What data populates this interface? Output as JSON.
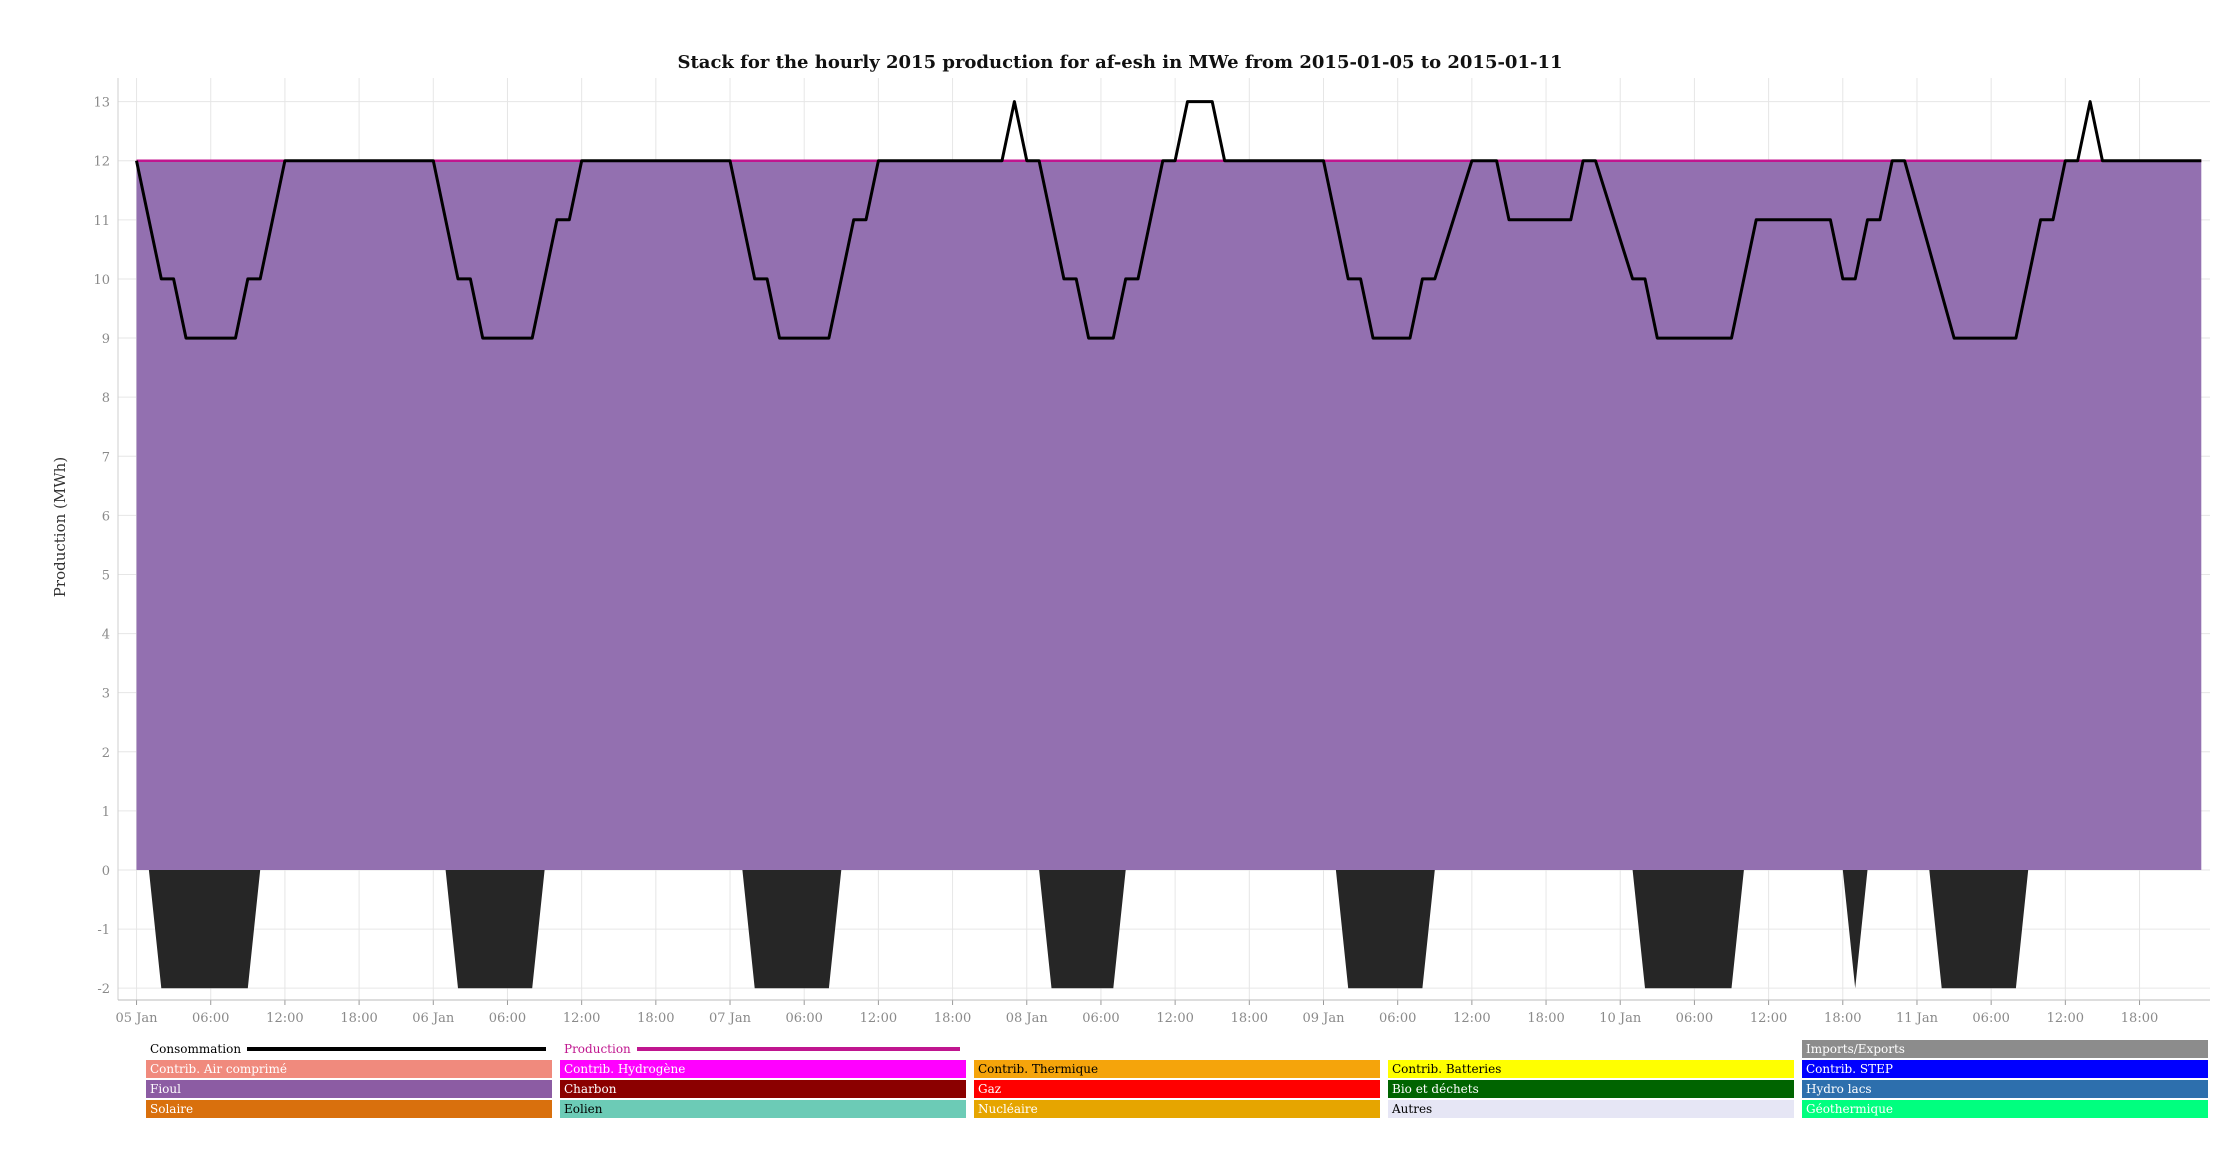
{
  "chart_data": {
    "type": "area",
    "title": "Stack for the hourly 2015 production for af-esh in MWe from 2015-01-05 to 2015-01-11",
    "xlabel": "",
    "ylabel": "Production (MWh)",
    "ylim": [
      -2.2,
      13.4
    ],
    "yticks": [
      -2,
      -1,
      0,
      1,
      2,
      3,
      4,
      5,
      6,
      7,
      8,
      9,
      10,
      11,
      12,
      13
    ],
    "xlim": [
      "2015-01-05 00:00",
      "2015-01-11 23:00"
    ],
    "xticks": [
      {
        "t": "2015-01-05 00:00",
        "label": "05 Jan"
      },
      {
        "t": "2015-01-05 06:00",
        "label": "06:00"
      },
      {
        "t": "2015-01-05 12:00",
        "label": "12:00"
      },
      {
        "t": "2015-01-05 18:00",
        "label": "18:00"
      },
      {
        "t": "2015-01-06 00:00",
        "label": "06 Jan"
      },
      {
        "t": "2015-01-06 06:00",
        "label": "06:00"
      },
      {
        "t": "2015-01-06 12:00",
        "label": "12:00"
      },
      {
        "t": "2015-01-06 18:00",
        "label": "18:00"
      },
      {
        "t": "2015-01-07 00:00",
        "label": "07 Jan"
      },
      {
        "t": "2015-01-07 06:00",
        "label": "06:00"
      },
      {
        "t": "2015-01-07 12:00",
        "label": "12:00"
      },
      {
        "t": "2015-01-07 18:00",
        "label": "18:00"
      },
      {
        "t": "2015-01-08 00:00",
        "label": "08 Jan"
      },
      {
        "t": "2015-01-08 06:00",
        "label": "06:00"
      },
      {
        "t": "2015-01-08 12:00",
        "label": "12:00"
      },
      {
        "t": "2015-01-08 18:00",
        "label": "18:00"
      },
      {
        "t": "2015-01-09 00:00",
        "label": "09 Jan"
      },
      {
        "t": "2015-01-09 06:00",
        "label": "06:00"
      },
      {
        "t": "2015-01-09 12:00",
        "label": "12:00"
      },
      {
        "t": "2015-01-09 18:00",
        "label": "18:00"
      },
      {
        "t": "2015-01-10 00:00",
        "label": "10 Jan"
      },
      {
        "t": "2015-01-10 06:00",
        "label": "06:00"
      },
      {
        "t": "2015-01-10 12:00",
        "label": "12:00"
      },
      {
        "t": "2015-01-10 18:00",
        "label": "18:00"
      },
      {
        "t": "2015-01-11 00:00",
        "label": "11 Jan"
      },
      {
        "t": "2015-01-11 06:00",
        "label": "06:00"
      },
      {
        "t": "2015-01-11 12:00",
        "label": "12:00"
      },
      {
        "t": "2015-01-11 18:00",
        "label": "18:00"
      }
    ],
    "grid": true,
    "series": [
      {
        "name": "Fioul",
        "kind": "area",
        "color": "#9370b0",
        "points": [
          [
            "2015-01-05 00:00",
            12
          ],
          [
            "2015-01-11 23:00",
            12
          ]
        ]
      },
      {
        "name": "Production",
        "kind": "line",
        "color": "#c0168f",
        "points": [
          [
            "2015-01-05 00:00",
            12
          ],
          [
            "2015-01-11 23:00",
            12
          ]
        ]
      },
      {
        "name": "Imports/Exports",
        "kind": "area",
        "color": "#262626",
        "points": [
          [
            "2015-01-05 00:00",
            0
          ],
          [
            "2015-01-05 01:00",
            0
          ],
          [
            "2015-01-05 02:00",
            -2
          ],
          [
            "2015-01-05 09:00",
            -2
          ],
          [
            "2015-01-05 10:00",
            0
          ],
          [
            "2015-01-06 00:00",
            0
          ],
          [
            "2015-01-06 01:00",
            0
          ],
          [
            "2015-01-06 02:00",
            -2
          ],
          [
            "2015-01-06 08:00",
            -2
          ],
          [
            "2015-01-06 09:00",
            0
          ],
          [
            "2015-01-07 00:00",
            0
          ],
          [
            "2015-01-07 01:00",
            0
          ],
          [
            "2015-01-07 02:00",
            -2
          ],
          [
            "2015-01-07 08:00",
            -2
          ],
          [
            "2015-01-07 09:00",
            0
          ],
          [
            "2015-01-08 01:00",
            0
          ],
          [
            "2015-01-08 02:00",
            -2
          ],
          [
            "2015-01-08 07:00",
            -2
          ],
          [
            "2015-01-08 08:00",
            0
          ],
          [
            "2015-01-09 01:00",
            0
          ],
          [
            "2015-01-09 02:00",
            -2
          ],
          [
            "2015-01-09 08:00",
            -2
          ],
          [
            "2015-01-09 09:00",
            0
          ],
          [
            "2015-01-10 00:00",
            0
          ],
          [
            "2015-01-10 01:00",
            0
          ],
          [
            "2015-01-10 02:00",
            -2
          ],
          [
            "2015-01-10 09:00",
            -2
          ],
          [
            "2015-01-10 10:00",
            0
          ],
          [
            "2015-01-10 18:00",
            0
          ],
          [
            "2015-01-10 19:00",
            -2
          ],
          [
            "2015-01-10 20:00",
            0
          ],
          [
            "2015-01-11 01:00",
            0
          ],
          [
            "2015-01-11 02:00",
            -2
          ],
          [
            "2015-01-11 08:00",
            -2
          ],
          [
            "2015-01-11 09:00",
            0
          ],
          [
            "2015-01-11 23:00",
            0
          ]
        ]
      },
      {
        "name": "Consommation",
        "kind": "line",
        "color": "#000000",
        "points": [
          [
            "2015-01-05 00:00",
            12
          ],
          [
            "2015-01-05 02:00",
            10
          ],
          [
            "2015-01-05 03:00",
            10
          ],
          [
            "2015-01-05 04:00",
            9
          ],
          [
            "2015-01-05 08:00",
            9
          ],
          [
            "2015-01-05 09:00",
            10
          ],
          [
            "2015-01-05 10:00",
            10
          ],
          [
            "2015-01-05 12:00",
            12
          ],
          [
            "2015-01-06 00:00",
            12
          ],
          [
            "2015-01-06 02:00",
            10
          ],
          [
            "2015-01-06 03:00",
            10
          ],
          [
            "2015-01-06 04:00",
            9
          ],
          [
            "2015-01-06 08:00",
            9
          ],
          [
            "2015-01-06 10:00",
            11
          ],
          [
            "2015-01-06 11:00",
            11
          ],
          [
            "2015-01-06 12:00",
            12
          ],
          [
            "2015-01-07 00:00",
            12
          ],
          [
            "2015-01-07 02:00",
            10
          ],
          [
            "2015-01-07 03:00",
            10
          ],
          [
            "2015-01-07 04:00",
            9
          ],
          [
            "2015-01-07 08:00",
            9
          ],
          [
            "2015-01-07 10:00",
            11
          ],
          [
            "2015-01-07 11:00",
            11
          ],
          [
            "2015-01-07 12:00",
            12
          ],
          [
            "2015-01-07 22:00",
            12
          ],
          [
            "2015-01-07 23:00",
            13
          ],
          [
            "2015-01-08 00:00",
            12
          ],
          [
            "2015-01-08 01:00",
            12
          ],
          [
            "2015-01-08 03:00",
            10
          ],
          [
            "2015-01-08 04:00",
            10
          ],
          [
            "2015-01-08 05:00",
            9
          ],
          [
            "2015-01-08 07:00",
            9
          ],
          [
            "2015-01-08 08:00",
            10
          ],
          [
            "2015-01-08 09:00",
            10
          ],
          [
            "2015-01-08 11:00",
            12
          ],
          [
            "2015-01-08 12:00",
            12
          ],
          [
            "2015-01-08 13:00",
            13
          ],
          [
            "2015-01-08 15:00",
            13
          ],
          [
            "2015-01-08 16:00",
            12
          ],
          [
            "2015-01-09 00:00",
            12
          ],
          [
            "2015-01-09 01:00",
            11
          ],
          [
            "2015-01-09 02:00",
            10
          ],
          [
            "2015-01-09 03:00",
            10
          ],
          [
            "2015-01-09 04:00",
            9
          ],
          [
            "2015-01-09 07:00",
            9
          ],
          [
            "2015-01-09 08:00",
            10
          ],
          [
            "2015-01-09 09:00",
            10
          ],
          [
            "2015-01-09 12:00",
            12
          ],
          [
            "2015-01-09 14:00",
            12
          ],
          [
            "2015-01-09 15:00",
            11
          ],
          [
            "2015-01-09 20:00",
            11
          ],
          [
            "2015-01-09 21:00",
            12
          ],
          [
            "2015-01-09 22:00",
            12
          ],
          [
            "2015-01-10 01:00",
            10
          ],
          [
            "2015-01-10 02:00",
            10
          ],
          [
            "2015-01-10 03:00",
            9
          ],
          [
            "2015-01-10 09:00",
            9
          ],
          [
            "2015-01-10 11:00",
            11
          ],
          [
            "2015-01-10 17:00",
            11
          ],
          [
            "2015-01-10 18:00",
            10
          ],
          [
            "2015-01-10 19:00",
            10
          ],
          [
            "2015-01-10 20:00",
            11
          ],
          [
            "2015-01-10 21:00",
            11
          ],
          [
            "2015-01-10 22:00",
            12
          ],
          [
            "2015-01-10 23:00",
            12
          ],
          [
            "2015-01-11 03:00",
            9
          ],
          [
            "2015-01-11 08:00",
            9
          ],
          [
            "2015-01-11 10:00",
            11
          ],
          [
            "2015-01-11 11:00",
            11
          ],
          [
            "2015-01-11 12:00",
            12
          ],
          [
            "2015-01-11 13:00",
            12
          ],
          [
            "2015-01-11 14:00",
            13
          ],
          [
            "2015-01-11 15:00",
            12
          ],
          [
            "2015-01-11 23:00",
            12
          ]
        ]
      }
    ],
    "legend_placement": "bottom",
    "legend": [
      [
        {
          "name": "Consommation",
          "kind": "line",
          "color": "#000000"
        },
        {
          "name": "Production",
          "kind": "line",
          "color": "#c0168f",
          "text_color": "#c0168f"
        },
        {
          "name": "",
          "kind": "empty"
        },
        {
          "name": "",
          "kind": "empty"
        },
        {
          "name": "Imports/Exports",
          "kind": "box",
          "color": "#8c8c8c"
        }
      ],
      [
        {
          "name": "Contrib. Air comprimé",
          "kind": "box",
          "color": "#f08a7d"
        },
        {
          "name": "Contrib. Hydrogène",
          "kind": "box",
          "color": "#ff00ff"
        },
        {
          "name": "Contrib. Thermique",
          "kind": "box",
          "color": "#f5a40b",
          "text_color": "#000000"
        },
        {
          "name": "Contrib. Batteries",
          "kind": "box",
          "color": "#ffff00",
          "text_color": "#000000"
        },
        {
          "name": "Contrib. STEP",
          "kind": "box",
          "color": "#0000ff"
        }
      ],
      [
        {
          "name": "Fioul",
          "kind": "box",
          "color": "#8c5ca3"
        },
        {
          "name": "Charbon",
          "kind": "box",
          "color": "#8b0000"
        },
        {
          "name": "Gaz",
          "kind": "box",
          "color": "#ff0000"
        },
        {
          "name": "Bio et déchets",
          "kind": "box",
          "color": "#006400"
        },
        {
          "name": "Hydro lacs",
          "kind": "box",
          "color": "#2d6fad"
        }
      ],
      [
        {
          "name": "Solaire",
          "kind": "box",
          "color": "#d9700d"
        },
        {
          "name": "Eolien",
          "kind": "box",
          "color": "#6ccbb6",
          "text_color": "#000000"
        },
        {
          "name": "Nucléaire",
          "kind": "box",
          "color": "#e6a500"
        },
        {
          "name": "Autres",
          "kind": "box",
          "color": "#e6e6f5",
          "text_color": "#000000"
        },
        {
          "name": "Géothermique",
          "kind": "box",
          "color": "#00ff7f"
        }
      ]
    ]
  }
}
